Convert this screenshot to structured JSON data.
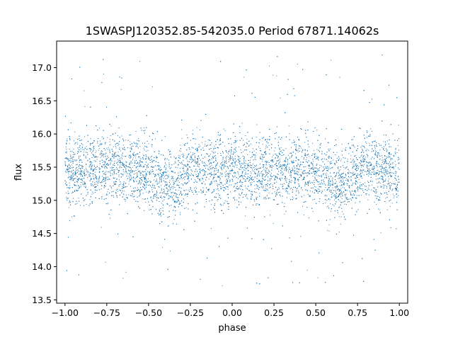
{
  "chart_data": {
    "type": "scatter",
    "title": "1SWASPJ120352.85-542035.0 Period 67871.14062s",
    "xlabel": "phase",
    "ylabel": "flux",
    "xlim": [
      -1.05,
      1.05
    ],
    "ylim": [
      13.45,
      17.4
    ],
    "xticks": [
      -1.0,
      -0.75,
      -0.5,
      -0.25,
      0.0,
      0.25,
      0.5,
      0.75,
      1.0
    ],
    "xtick_labels": [
      "−1.00",
      "−0.75",
      "−0.50",
      "−0.25",
      "0.00",
      "0.25",
      "0.50",
      "0.75",
      "1.00"
    ],
    "yticks": [
      13.5,
      14.0,
      14.5,
      15.0,
      15.5,
      16.0,
      16.5,
      17.0
    ],
    "ytick_labels": [
      "13.5",
      "14.0",
      "14.5",
      "15.0",
      "15.5",
      "16.0",
      "16.5",
      "17.0"
    ],
    "grid": false,
    "marker_color": "#1f77b4",
    "series": [
      {
        "name": "",
        "x_range": [
          -1.0,
          1.0
        ],
        "profile_phase": [
          -1.0,
          -0.9,
          -0.8,
          -0.7,
          -0.6,
          -0.5,
          -0.4,
          -0.35,
          -0.3,
          -0.2,
          -0.1,
          0.0,
          0.1,
          0.2,
          0.3,
          0.4,
          0.5,
          0.6,
          0.65,
          0.7,
          0.8,
          0.9,
          1.0
        ],
        "profile_median_flux": [
          15.4,
          15.45,
          15.5,
          15.5,
          15.5,
          15.4,
          15.25,
          15.2,
          15.35,
          15.5,
          15.45,
          15.4,
          15.4,
          15.45,
          15.5,
          15.5,
          15.4,
          15.25,
          15.2,
          15.35,
          15.5,
          15.45,
          15.4
        ],
        "core_spread": [
          14.9,
          16.0
        ],
        "outlier_range": [
          13.7,
          17.2
        ]
      }
    ]
  }
}
